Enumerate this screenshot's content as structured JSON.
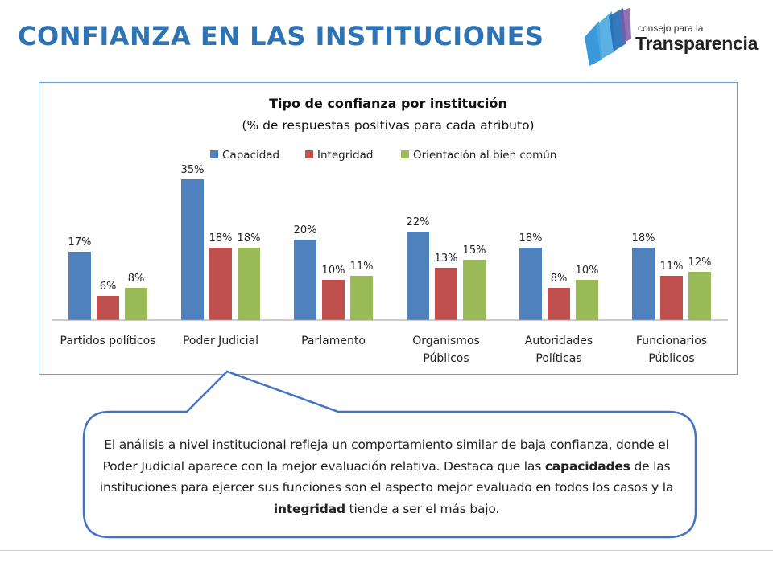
{
  "slide": {
    "title": "CONFIANZA EN LAS INSTITUCIONES"
  },
  "logo": {
    "line1": "consejo para la",
    "line2": "Transparencia"
  },
  "chart_data": {
    "type": "bar",
    "title": "Tipo de confianza por institución",
    "subtitle": "(% de respuestas positivas para cada atributo)",
    "categories": [
      [
        "Partidos políticos"
      ],
      [
        "Poder Judicial"
      ],
      [
        "Parlamento"
      ],
      [
        "Organismos",
        "Públicos"
      ],
      [
        "Autoridades",
        "Políticas"
      ],
      [
        "Funcionarios",
        "Públicos"
      ]
    ],
    "series": [
      {
        "name": "Capacidad",
        "color": "#4F81BD",
        "values": [
          17,
          35,
          20,
          22,
          18,
          18
        ],
        "labels": [
          "17%",
          "35%",
          "20%",
          "22%",
          "18%",
          "18%"
        ]
      },
      {
        "name": "Integridad",
        "color": "#C0504D",
        "values": [
          6,
          18,
          10,
          13,
          8,
          11
        ],
        "labels": [
          "6%",
          "18%",
          "10%",
          "13%",
          "8%",
          "11%"
        ]
      },
      {
        "name": "Orientación al bien común",
        "color": "#9BBB59",
        "values": [
          8,
          18,
          11,
          15,
          10,
          12
        ],
        "labels": [
          "8%",
          "18%",
          "11%",
          "15%",
          "10%",
          "12%"
        ]
      }
    ],
    "ylim": [
      0,
      40
    ],
    "legend_position": "top",
    "grid": false
  },
  "callout": {
    "part1": "El análisis a nivel institucional refleja un comportamiento similar de baja confianza, donde el Poder Judicial aparece con la mejor evaluación relativa. Destaca que las ",
    "bold1": "capacidades",
    "part2": " de las instituciones para ejercer sus funciones son el aspecto mejor evaluado en todos los casos y la ",
    "bold2": "integridad",
    "part3": " tiende a ser el más bajo."
  }
}
